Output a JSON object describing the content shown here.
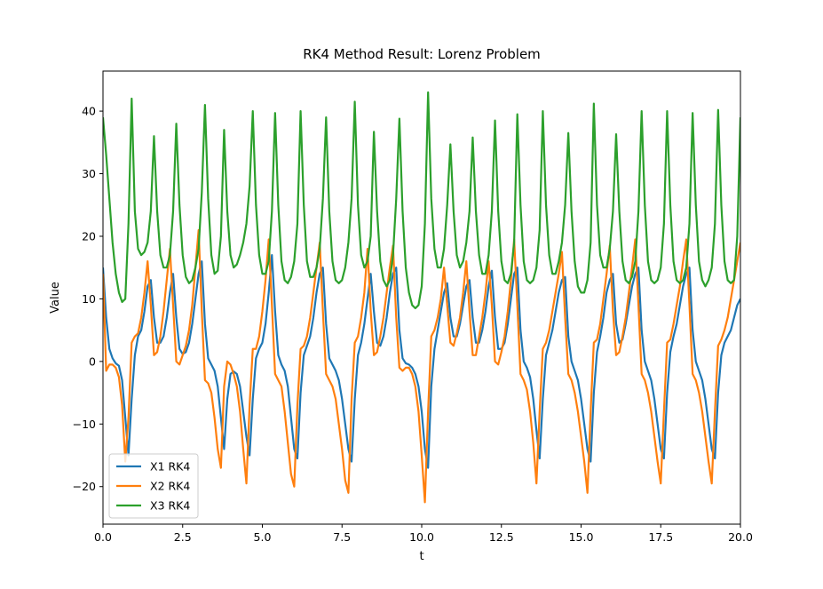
{
  "chart_data": {
    "type": "line",
    "title": "RK4 Method Result: Lorenz Problem",
    "x_label": "t",
    "y_label": "Value",
    "xlim": [
      0,
      20
    ],
    "ylim": [
      -26,
      46.4
    ],
    "xticks": [
      {
        "value": 0,
        "label": "0.0"
      },
      2.5,
      {
        "value": 5,
        "label": "5.0"
      },
      7.5,
      {
        "value": 10,
        "label": "10.0"
      },
      12.5,
      {
        "value": 15,
        "label": "15.0"
      },
      17.5,
      {
        "value": 20,
        "label": "20.0"
      }
    ],
    "yticks": [
      {
        "value": -20,
        "label": "−20"
      },
      {
        "value": -10,
        "label": "−10"
      },
      0,
      10,
      20,
      30,
      40
    ],
    "grid": false,
    "legend": "lower left",
    "x": [
      0,
      0.1,
      0.2,
      0.3,
      0.4,
      0.5,
      0.6,
      0.7,
      0.8,
      0.9,
      1,
      1.1,
      1.2,
      1.3,
      1.4,
      1.5,
      1.6,
      1.7,
      1.8,
      1.9,
      2,
      2.1,
      2.2,
      2.3,
      2.4,
      2.5,
      2.6,
      2.7,
      2.8,
      2.9,
      3,
      3.1,
      3.2,
      3.3,
      3.4,
      3.5,
      3.6,
      3.7,
      3.8,
      3.9,
      4,
      4.1,
      4.2,
      4.3,
      4.4,
      4.5,
      4.6,
      4.7,
      4.8,
      4.9,
      5,
      5.1,
      5.2,
      5.3,
      5.4,
      5.5,
      5.6,
      5.7,
      5.8,
      5.9,
      6,
      6.1,
      6.2,
      6.3,
      6.4,
      6.5,
      6.6,
      6.7,
      6.8,
      6.9,
      7,
      7.1,
      7.2,
      7.3,
      7.4,
      7.5,
      7.6,
      7.7,
      7.8,
      7.9,
      8,
      8.1,
      8.2,
      8.3,
      8.4,
      8.5,
      8.6,
      8.7,
      8.8,
      8.9,
      9,
      9.1,
      9.2,
      9.3,
      9.4,
      9.5,
      9.6,
      9.7,
      9.8,
      9.9,
      10,
      10.1,
      10.2,
      10.3,
      10.4,
      10.5,
      10.6,
      10.7,
      10.8,
      10.9,
      11,
      11.1,
      11.2,
      11.3,
      11.4,
      11.5,
      11.6,
      11.7,
      11.8,
      11.9,
      12,
      12.1,
      12.2,
      12.3,
      12.4,
      12.5,
      12.6,
      12.7,
      12.8,
      12.9,
      13,
      13.1,
      13.2,
      13.3,
      13.4,
      13.5,
      13.6,
      13.7,
      13.8,
      13.9,
      14,
      14.1,
      14.2,
      14.3,
      14.4,
      14.5,
      14.6,
      14.7,
      14.8,
      14.9,
      15,
      15.1,
      15.2,
      15.3,
      15.4,
      15.5,
      15.6,
      15.7,
      15.8,
      15.9,
      16,
      16.1,
      16.2,
      16.3,
      16.4,
      16.5,
      16.6,
      16.7,
      16.8,
      16.9,
      17,
      17.1,
      17.2,
      17.3,
      17.4,
      17.5,
      17.6,
      17.7,
      17.8,
      17.9,
      18,
      18.1,
      18.2,
      18.3,
      18.4,
      18.5,
      18.6,
      18.7,
      18.8,
      18.9,
      19,
      19.1,
      19.2,
      19.3,
      19.4,
      19.5,
      19.6,
      19.7,
      19.8,
      19.9,
      20
    ],
    "series": [
      {
        "name": "X1 RK4",
        "color": "#1f77b4",
        "values": [
          15,
          7,
          2,
          0.5,
          -0.3,
          -0.7,
          -3,
          -9,
          -15,
          -6,
          1,
          4,
          5,
          8,
          12,
          13,
          7,
          3,
          3,
          4,
          7,
          11,
          14,
          7,
          2,
          1.2,
          1.5,
          3,
          6,
          10,
          14,
          16,
          6,
          0.5,
          -0.5,
          -1.5,
          -4,
          -9,
          -14,
          -6,
          -2,
          -1.6,
          -2,
          -4,
          -8,
          -12,
          -15,
          -6,
          0.5,
          2,
          3,
          6,
          11,
          17,
          8,
          1,
          -0.5,
          -1.5,
          -4,
          -9,
          -14,
          -15.5,
          -5,
          1,
          2.5,
          4,
          7,
          11,
          14,
          15,
          6,
          0.5,
          -0.5,
          -1.5,
          -3,
          -6,
          -10,
          -14,
          -16,
          -6,
          1,
          3,
          6,
          10,
          14,
          8,
          3,
          2.5,
          4,
          7,
          11,
          14,
          15,
          5,
          0.5,
          -0.3,
          -0.5,
          -1,
          -2,
          -4,
          -8,
          -14,
          -17,
          -4,
          2,
          5,
          8,
          11,
          12.5,
          7,
          4,
          4,
          6,
          9,
          12,
          13,
          7,
          3,
          3,
          5,
          8,
          12,
          14.5,
          7,
          2,
          2,
          3,
          6,
          10,
          14,
          15,
          5,
          0,
          -1,
          -2.5,
          -6,
          -11,
          -15.5,
          -6,
          1,
          3,
          5,
          8,
          11,
          13,
          13.5,
          4,
          0,
          -1.5,
          -3,
          -6,
          -10,
          -14,
          -16,
          -5,
          1.5,
          4,
          7,
          11,
          13,
          14,
          6,
          3,
          3.5,
          6,
          9,
          12,
          14,
          15,
          5,
          0,
          -1.5,
          -3,
          -6,
          -10,
          -14,
          -15.5,
          -5,
          1.5,
          4,
          6,
          9,
          12,
          14,
          15,
          5,
          0,
          -1.5,
          -3,
          -6,
          -10,
          -14,
          -15.5,
          -5,
          1,
          3,
          4,
          5,
          7,
          9,
          10
        ]
      },
      {
        "name": "X2 RK4",
        "color": "#ff7f0e",
        "values": [
          14,
          -1.5,
          -0.5,
          -0.5,
          -1,
          -2.5,
          -7,
          -16,
          -9,
          3,
          4,
          4.5,
          7,
          11,
          16,
          9,
          1,
          1.5,
          4,
          8,
          13,
          18,
          9,
          0,
          -0.5,
          1,
          2.5,
          5,
          9,
          15,
          21,
          8,
          -3,
          -3.5,
          -5,
          -9,
          -14,
          -17,
          -4,
          0,
          -0.5,
          -2,
          -4,
          -8,
          -14,
          -19.5,
          -7,
          2,
          2,
          4,
          8,
          13,
          19.5,
          9,
          -2,
          -3,
          -4,
          -8,
          -13,
          -18,
          -20,
          -7,
          2,
          2.5,
          4,
          7,
          11,
          15,
          19,
          8,
          -2,
          -3,
          -4,
          -6,
          -10,
          -14,
          -19,
          -21,
          -6,
          3,
          4,
          7,
          11,
          18,
          8,
          1,
          1.5,
          4,
          7,
          11,
          15,
          18.5,
          7,
          -1,
          -1.5,
          -1,
          -1,
          -2,
          -4,
          -8,
          -15,
          -22.5,
          -8,
          4,
          5,
          7,
          10,
          15,
          9,
          3,
          2.5,
          4.5,
          7,
          11,
          16,
          8,
          1,
          1,
          4,
          7,
          11,
          16,
          9,
          0,
          -0.5,
          1.5,
          4,
          8,
          13,
          19.5,
          9,
          -2,
          -3,
          -4.5,
          -8,
          -13,
          -19.5,
          -8,
          2,
          3,
          5,
          8,
          11,
          14,
          17.5,
          7,
          -2,
          -3,
          -5,
          -8,
          -12,
          -16,
          -21,
          -8,
          3,
          3.5,
          6,
          10,
          14,
          18.5,
          8,
          1,
          1.5,
          4,
          7,
          11,
          15,
          19.5,
          9,
          -2,
          -3,
          -5,
          -8,
          -12,
          -16,
          -19.5,
          -8,
          3,
          3.5,
          6,
          9,
          12,
          16,
          19.5,
          9,
          -2,
          -3,
          -5,
          -8,
          -12,
          -16,
          -19.5,
          -8,
          2.5,
          3.5,
          5,
          7,
          10,
          13,
          16,
          19
        ]
      },
      {
        "name": "X3 RK4",
        "color": "#2ca02c",
        "values": [
          39,
          33,
          26,
          19,
          14,
          11,
          9.5,
          10,
          22,
          42,
          24,
          18,
          17,
          17.5,
          19,
          24,
          36,
          24,
          17,
          15,
          15,
          17,
          24,
          38,
          25,
          17,
          13.5,
          12.5,
          13,
          15,
          18,
          27,
          41,
          26,
          17,
          14,
          14.5,
          20,
          37,
          24,
          17,
          15,
          15.5,
          17,
          19,
          22,
          28,
          40,
          25,
          17,
          14,
          14,
          16,
          24,
          39.7,
          25,
          16,
          13,
          12.5,
          13.5,
          16,
          22,
          40,
          25,
          16,
          13.5,
          13.5,
          15,
          18,
          26,
          39,
          24,
          16,
          13,
          12.5,
          13,
          15,
          19,
          26,
          41.5,
          25,
          17,
          15,
          16,
          20,
          36.7,
          24,
          16,
          13,
          12,
          13,
          17,
          26,
          38.8,
          24,
          15,
          11,
          9,
          8.5,
          9,
          12,
          22,
          43,
          26,
          18,
          15,
          15,
          18,
          25,
          34.7,
          24,
          17,
          15,
          16,
          19,
          24,
          35.8,
          24,
          17,
          14,
          14,
          17,
          24,
          38.5,
          24,
          16,
          13,
          12.5,
          14,
          19,
          39.5,
          25,
          16,
          13,
          12.5,
          13,
          15,
          21,
          40,
          25,
          17,
          14,
          14,
          16,
          19,
          25,
          36.5,
          24,
          16,
          12,
          11,
          11,
          13,
          19,
          41.2,
          25,
          17,
          15,
          15,
          18,
          24,
          36.3,
          24,
          16,
          13,
          12.5,
          13.5,
          16,
          24,
          40,
          25,
          16,
          13,
          12.5,
          13,
          15,
          22,
          40,
          25,
          16,
          13,
          12.5,
          13,
          15,
          22,
          39.7,
          25,
          16,
          13,
          12,
          13,
          15,
          22,
          40.2,
          25,
          16,
          13,
          12.5,
          13,
          20,
          39
        ]
      }
    ]
  }
}
